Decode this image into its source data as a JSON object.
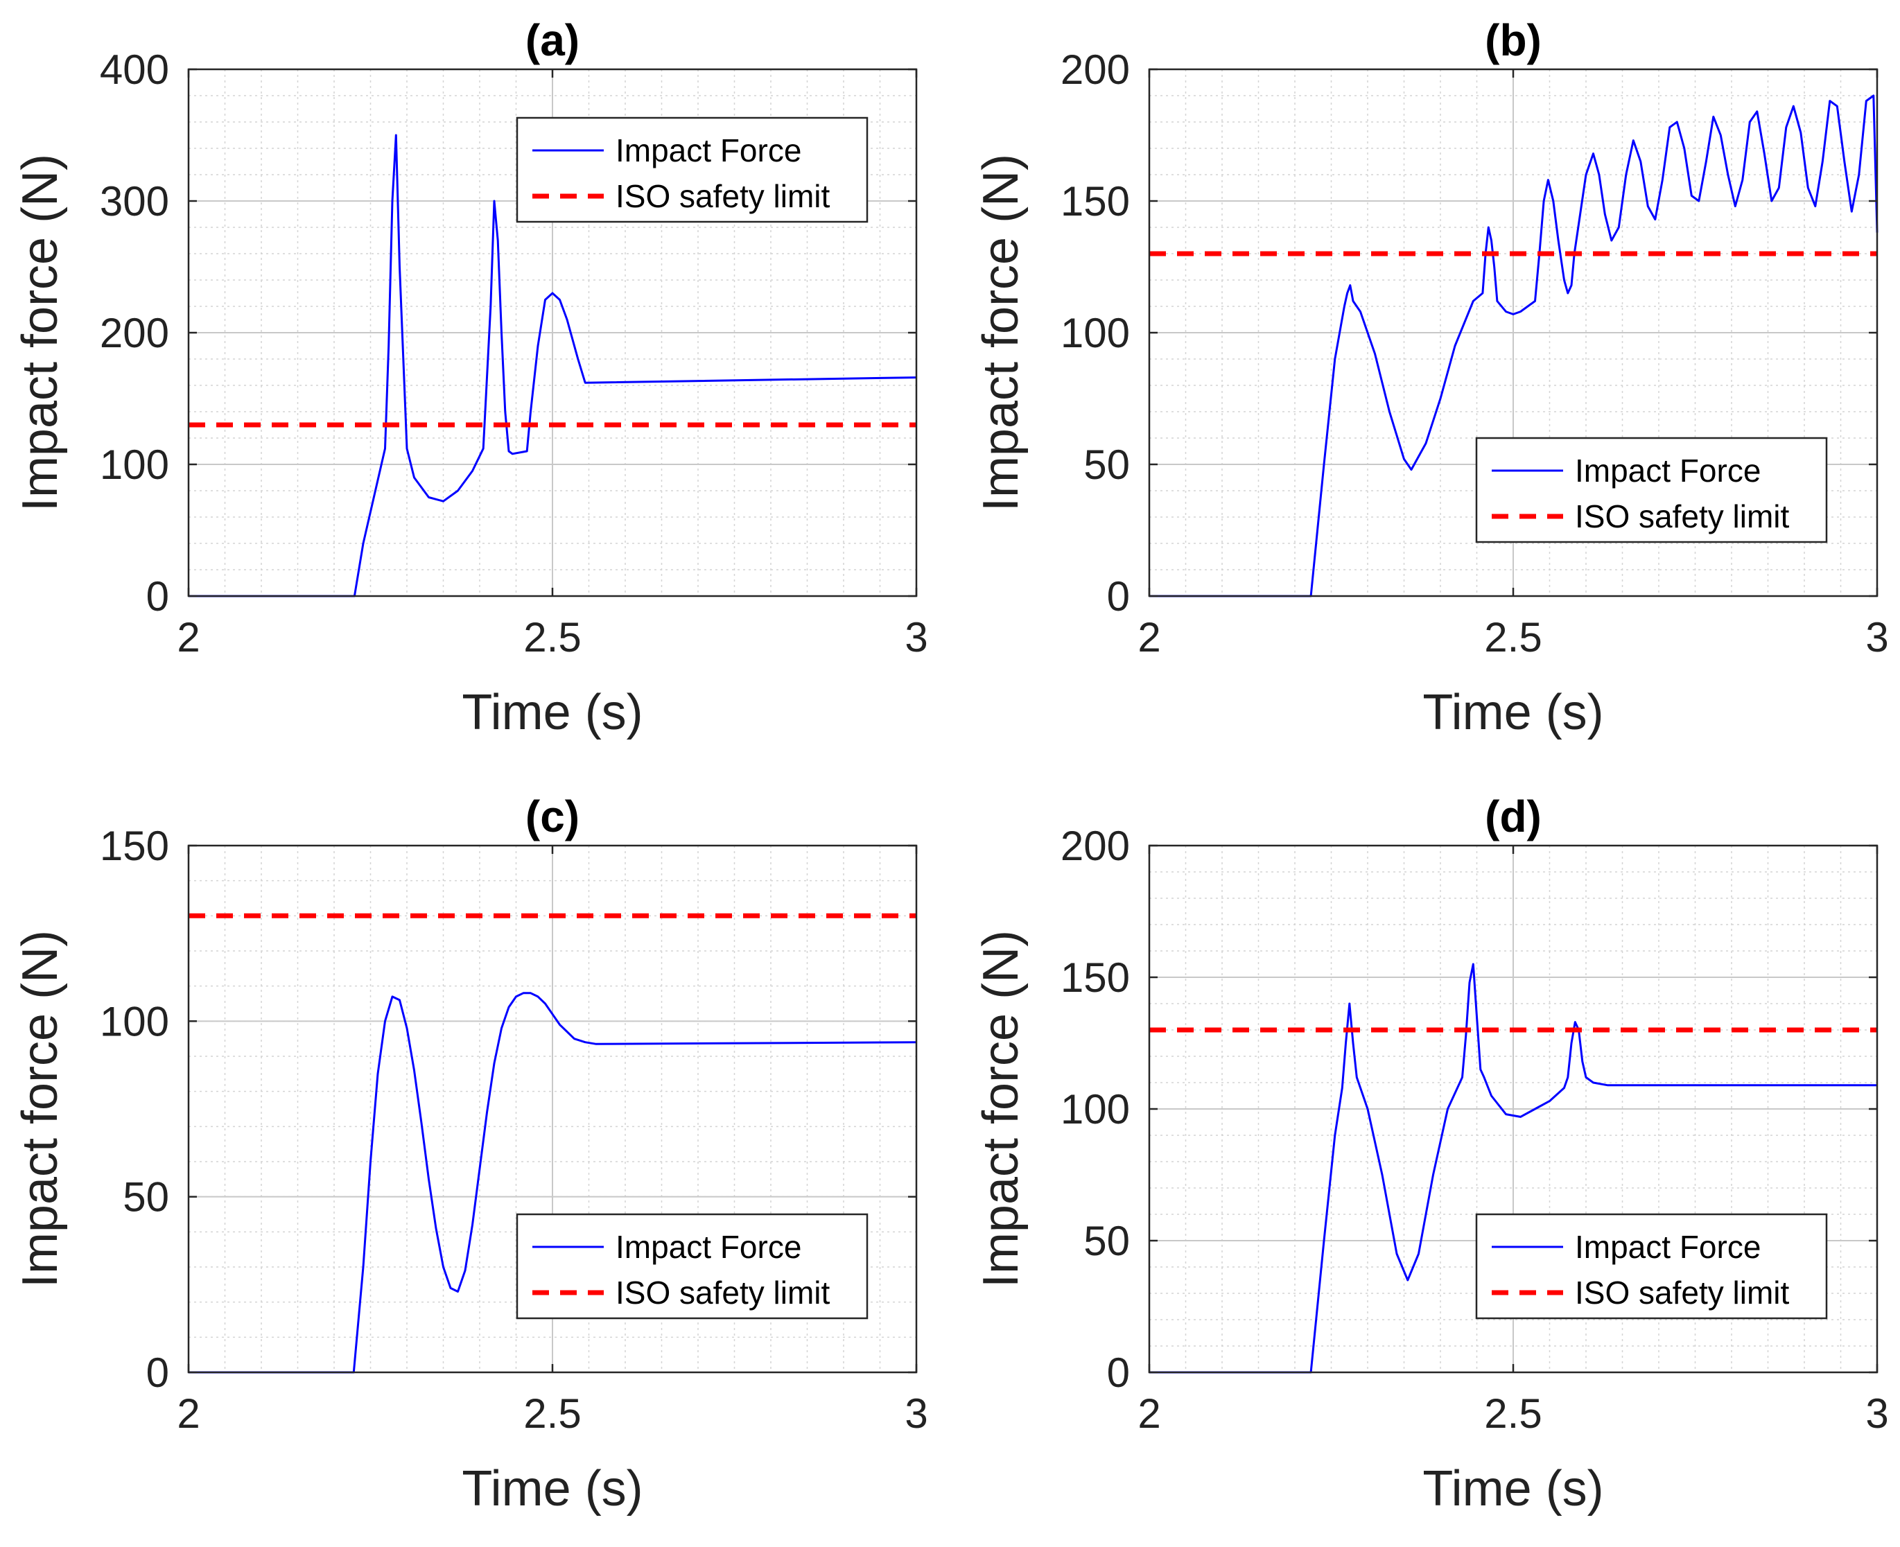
{
  "chart_data": [
    {
      "type": "line",
      "title": "(a)",
      "xlabel": "Time (s)",
      "ylabel": "Impact force (N)",
      "xlim": [
        2,
        3
      ],
      "ylim": [
        0,
        400
      ],
      "xticks": [
        2,
        2.5,
        3
      ],
      "xtick_labels": [
        "2",
        "2.5",
        "3"
      ],
      "yticks": [
        0,
        100,
        200,
        300,
        400
      ],
      "ytick_labels": [
        "0",
        "100",
        "200",
        "300",
        "400"
      ],
      "grid": true,
      "minor_grid": true,
      "legend_placement": "top-right",
      "colors": {
        "force": "#0000ff",
        "limit": "#ff0000"
      },
      "series": [
        {
          "name": "Impact Force",
          "style": "solid",
          "x": [
            2.0,
            2.228,
            2.24,
            2.27,
            2.275,
            2.28,
            2.285,
            2.29,
            2.3,
            2.31,
            2.33,
            2.35,
            2.37,
            2.39,
            2.405,
            2.415,
            2.42,
            2.425,
            2.43,
            2.435,
            2.44,
            2.445,
            2.465,
            2.47,
            2.48,
            2.49,
            2.5,
            2.51,
            2.52,
            2.535,
            2.545,
            3.0
          ],
          "y": [
            0,
            0,
            40,
            112,
            190,
            300,
            350,
            250,
            112,
            90,
            75,
            72,
            80,
            95,
            112,
            220,
            300,
            270,
            200,
            140,
            110,
            108,
            110,
            140,
            190,
            225,
            230,
            225,
            210,
            180,
            162,
            166
          ]
        },
        {
          "name": "ISO safety limit",
          "style": "dashed",
          "x": [
            2,
            3
          ],
          "y": [
            130,
            130
          ]
        }
      ]
    },
    {
      "type": "line",
      "title": "(b)",
      "xlabel": "Time (s)",
      "ylabel": "Impact force (N)",
      "xlim": [
        2,
        3
      ],
      "ylim": [
        0,
        200
      ],
      "xticks": [
        2,
        2.5,
        3
      ],
      "xtick_labels": [
        "2",
        "2.5",
        "3"
      ],
      "yticks": [
        0,
        50,
        100,
        150,
        200
      ],
      "ytick_labels": [
        "0",
        "50",
        "100",
        "150",
        "200"
      ],
      "grid": true,
      "minor_grid": true,
      "legend_placement": "bottom-right",
      "colors": {
        "force": "#0000ff",
        "limit": "#ff0000"
      },
      "series": [
        {
          "name": "Impact Force",
          "style": "solid",
          "x": [
            2.0,
            2.222,
            2.24,
            2.255,
            2.268,
            2.272,
            2.276,
            2.28,
            2.29,
            2.31,
            2.33,
            2.35,
            2.36,
            2.38,
            2.4,
            2.42,
            2.445,
            2.458,
            2.462,
            2.466,
            2.47,
            2.474,
            2.478,
            2.49,
            2.5,
            2.51,
            2.53,
            2.536,
            2.542,
            2.548,
            2.555,
            2.562,
            2.57,
            2.575,
            2.58,
            2.584,
            2.592,
            2.6,
            2.61,
            2.618,
            2.626,
            2.635,
            2.645,
            2.655,
            2.665,
            2.675,
            2.685,
            2.695,
            2.705,
            2.715,
            2.725,
            2.735,
            2.745,
            2.755,
            2.765,
            2.775,
            2.785,
            2.795,
            2.805,
            2.815,
            2.825,
            2.835,
            2.845,
            2.855,
            2.865,
            2.875,
            2.885,
            2.895,
            2.905,
            2.915,
            2.925,
            2.935,
            2.945,
            2.955,
            2.965,
            2.975,
            2.985,
            2.995,
            3.0
          ],
          "y": [
            0,
            0,
            50,
            90,
            110,
            115,
            118,
            112,
            108,
            92,
            70,
            52,
            48,
            58,
            75,
            95,
            112,
            115,
            130,
            140,
            135,
            125,
            112,
            108,
            107,
            108,
            112,
            130,
            150,
            158,
            150,
            135,
            120,
            115,
            118,
            130,
            145,
            160,
            168,
            160,
            145,
            135,
            140,
            160,
            173,
            165,
            148,
            143,
            158,
            178,
            180,
            170,
            152,
            150,
            165,
            182,
            175,
            160,
            148,
            158,
            180,
            184,
            168,
            150,
            155,
            178,
            186,
            176,
            155,
            148,
            165,
            188,
            186,
            165,
            146,
            160,
            188,
            190,
            138
          ]
        },
        {
          "name": "ISO safety limit",
          "style": "dashed",
          "x": [
            2,
            3
          ],
          "y": [
            130,
            130
          ]
        }
      ]
    },
    {
      "type": "line",
      "title": "(c)",
      "xlabel": "Time (s)",
      "ylabel": "Impact force (N)",
      "xlim": [
        2,
        3
      ],
      "ylim": [
        0,
        150
      ],
      "xticks": [
        2,
        2.5,
        3
      ],
      "xtick_labels": [
        "2",
        "2.5",
        "3"
      ],
      "yticks": [
        0,
        50,
        100,
        150
      ],
      "ytick_labels": [
        "0",
        "50",
        "100",
        "150"
      ],
      "grid": true,
      "minor_grid": true,
      "legend_placement": "bottom-right",
      "colors": {
        "force": "#0000ff",
        "limit": "#ff0000"
      },
      "series": [
        {
          "name": "Impact Force",
          "style": "solid",
          "x": [
            2.0,
            2.227,
            2.24,
            2.25,
            2.26,
            2.27,
            2.28,
            2.29,
            2.3,
            2.31,
            2.32,
            2.33,
            2.34,
            2.35,
            2.36,
            2.37,
            2.38,
            2.39,
            2.4,
            2.41,
            2.42,
            2.43,
            2.44,
            2.45,
            2.46,
            2.47,
            2.48,
            2.49,
            2.5,
            2.51,
            2.52,
            2.53,
            2.545,
            2.56,
            3.0
          ],
          "y": [
            0,
            0,
            30,
            60,
            85,
            100,
            107,
            106,
            98,
            86,
            71,
            55,
            41,
            30,
            24,
            23,
            29,
            42,
            58,
            74,
            88,
            98,
            104,
            107,
            108,
            108,
            107,
            105,
            102,
            99,
            97,
            95,
            94,
            93.5,
            94
          ]
        },
        {
          "name": "ISO safety limit",
          "style": "dashed",
          "x": [
            2,
            3
          ],
          "y": [
            130,
            130
          ]
        }
      ]
    },
    {
      "type": "line",
      "title": "(d)",
      "xlabel": "Time (s)",
      "ylabel": "Impact force (N)",
      "xlim": [
        2,
        3
      ],
      "ylim": [
        0,
        200
      ],
      "xticks": [
        2,
        2.5,
        3
      ],
      "xtick_labels": [
        "2",
        "2.5",
        "3"
      ],
      "yticks": [
        0,
        50,
        100,
        150,
        200
      ],
      "ytick_labels": [
        "0",
        "50",
        "100",
        "150",
        "200"
      ],
      "grid": true,
      "minor_grid": true,
      "legend_placement": "bottom-right",
      "colors": {
        "force": "#0000ff",
        "limit": "#ff0000"
      },
      "series": [
        {
          "name": "Impact Force",
          "style": "solid",
          "x": [
            2.0,
            2.222,
            2.24,
            2.255,
            2.265,
            2.27,
            2.275,
            2.28,
            2.285,
            2.3,
            2.32,
            2.34,
            2.355,
            2.37,
            2.39,
            2.41,
            2.43,
            2.435,
            2.44,
            2.445,
            2.45,
            2.455,
            2.46,
            2.47,
            2.49,
            2.51,
            2.53,
            2.55,
            2.57,
            2.575,
            2.58,
            2.585,
            2.59,
            2.595,
            2.6,
            2.61,
            2.63,
            3.0
          ],
          "y": [
            0,
            0,
            50,
            90,
            108,
            125,
            140,
            125,
            112,
            100,
            75,
            45,
            35,
            45,
            75,
            100,
            112,
            128,
            148,
            155,
            135,
            115,
            112,
            105,
            98,
            97,
            100,
            103,
            108,
            112,
            125,
            133,
            130,
            118,
            112,
            110,
            109,
            109
          ]
        },
        {
          "name": "ISO safety limit",
          "style": "dashed",
          "x": [
            2,
            3
          ],
          "y": [
            130,
            130
          ]
        }
      ]
    }
  ]
}
